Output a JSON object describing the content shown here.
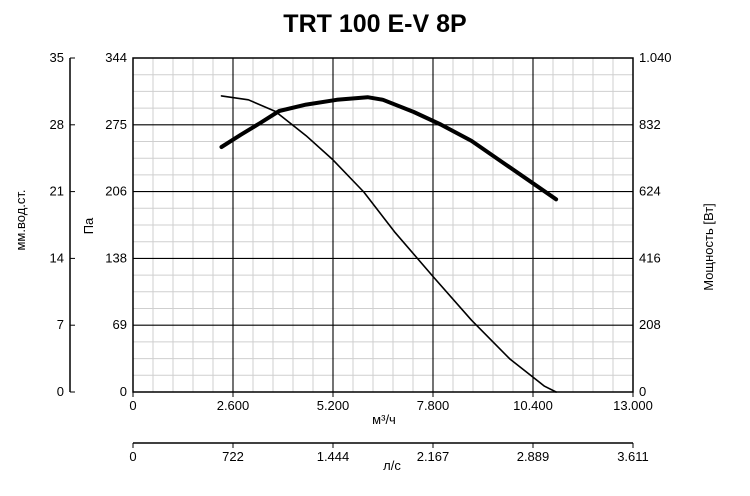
{
  "chart_data": {
    "type": "line",
    "title": "TRT 100 E-V 8P",
    "x_axis_main": {
      "label": "м³/ч",
      "range": [
        0,
        13000
      ],
      "ticks": [
        0,
        2600,
        5200,
        7800,
        10400,
        13000
      ],
      "tick_labels": [
        "0",
        "2.600",
        "5.200",
        "7.800",
        "10.400",
        "13.000"
      ]
    },
    "x_axis_secondary": {
      "label": "л/с",
      "range": [
        0,
        3611
      ],
      "tick_labels": [
        "0",
        "722",
        "1.444",
        "2.167",
        "2.889",
        "3.611"
      ]
    },
    "y_axis_pa": {
      "label": "Па",
      "range": [
        0,
        344
      ],
      "tick_labels": [
        "0",
        "69",
        "138",
        "206",
        "275",
        "344"
      ]
    },
    "y_axis_mm": {
      "label": "мм.вод.ст.",
      "range": [
        0,
        35
      ],
      "tick_labels": [
        "0",
        "7",
        "14",
        "21",
        "28",
        "35"
      ]
    },
    "y_axis_power": {
      "label": "Мощность [Вт]",
      "range": [
        0,
        1040
      ],
      "tick_labels": [
        "0",
        "208",
        "416",
        "624",
        "832",
        "1.040"
      ]
    },
    "grid": true,
    "series": [
      {
        "axis": "pressure",
        "x": [
          2300,
          3000,
          3700,
          4500,
          5200,
          6000,
          6800,
          7800,
          8800,
          9800,
          10700,
          11000
        ],
        "y": [
          305,
          301,
          289,
          264,
          239,
          206,
          165,
          119,
          74,
          34,
          6,
          0
        ]
      },
      {
        "axis": "power",
        "x": [
          2300,
          2800,
          3300,
          3800,
          4500,
          5300,
          6100,
          6500,
          7300,
          8000,
          8800,
          9600,
          10400,
          11000
        ],
        "y": [
          763,
          801,
          837,
          875,
          895,
          910,
          918,
          910,
          872,
          833,
          782,
          716,
          650,
          600
        ]
      }
    ]
  }
}
